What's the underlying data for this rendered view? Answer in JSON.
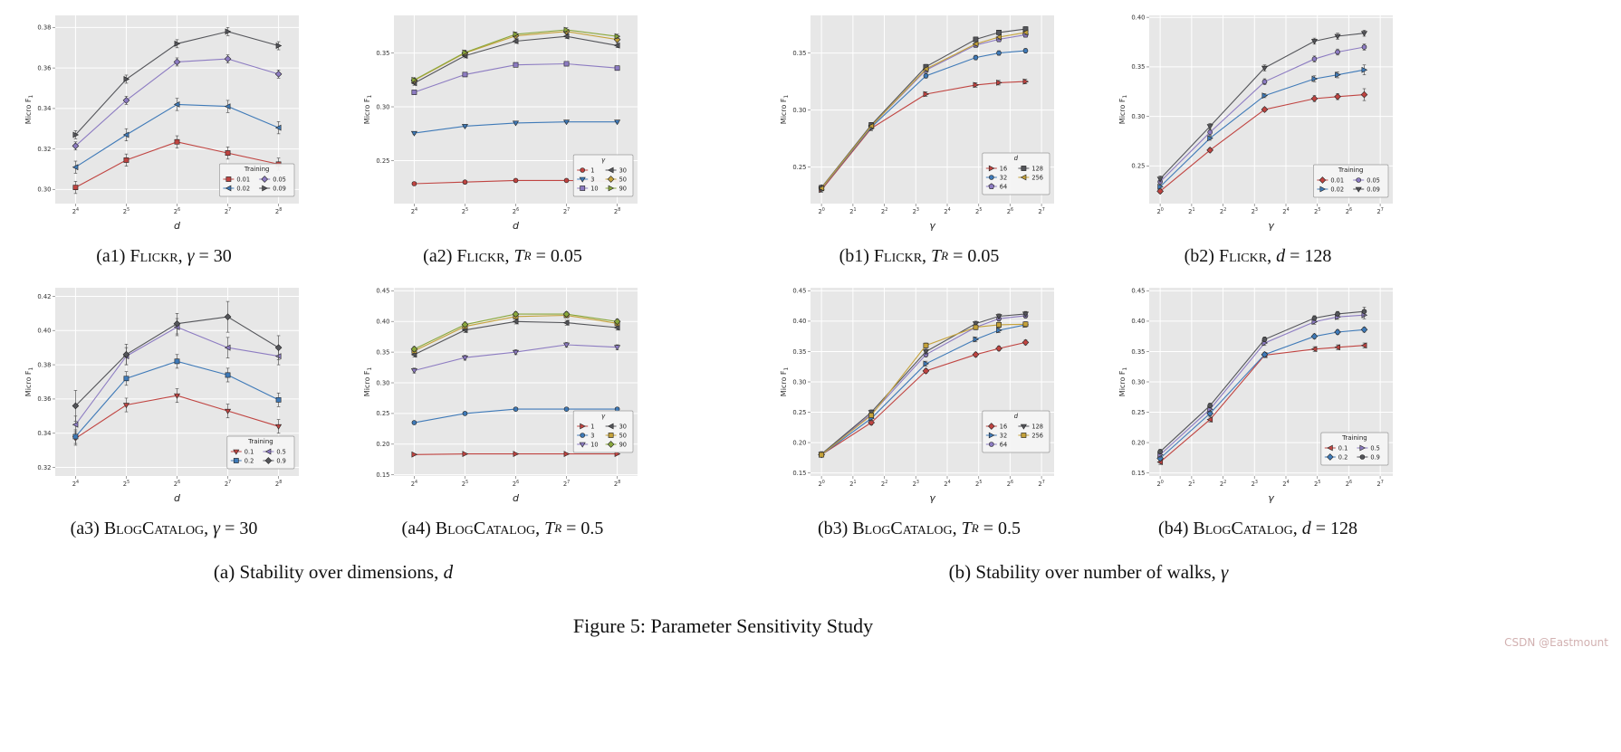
{
  "figure": {
    "caption": "Figure 5: Parameter Sensitivity Study",
    "watermark": "CSDN @Eastmount"
  },
  "group_captions": {
    "a": {
      "pre": "(a) Stability over dimensions, ",
      "var": "d"
    },
    "b": {
      "pre": "(b) Stability over number of walks, ",
      "var": "γ"
    }
  },
  "subcaptions": {
    "a1": {
      "idx": "(a1) ",
      "name": "Flickr",
      "mid": ", ",
      "var": "γ",
      "sub": "",
      "post": " = 30"
    },
    "a2": {
      "idx": "(a2) ",
      "name": "Flickr",
      "mid": ", ",
      "var": "T",
      "sub": "R",
      "post": " = 0.05"
    },
    "a3": {
      "idx": "(a3) ",
      "name": "BlogCatalog",
      "mid": ", ",
      "var": "γ",
      "sub": "",
      "post": " = 30"
    },
    "a4": {
      "idx": "(a4) ",
      "name": "BlogCatalog",
      "mid": ", ",
      "var": "T",
      "sub": "R",
      "post": " = 0.5"
    },
    "b1": {
      "idx": "(b1) ",
      "name": "Flickr",
      "mid": ", ",
      "var": "T",
      "sub": "R",
      "post": " = 0.05"
    },
    "b2": {
      "idx": "(b2) ",
      "name": "Flickr",
      "mid": ", ",
      "var": "d",
      "sub": "",
      "post": " = 128"
    },
    "b3": {
      "idx": "(b3) ",
      "name": "BlogCatalog",
      "mid": ", ",
      "var": "T",
      "sub": "R",
      "post": " = 0.5"
    },
    "b4": {
      "idx": "(b4) ",
      "name": "BlogCatalog",
      "mid": ", ",
      "var": "d",
      "sub": "",
      "post": " = 128"
    }
  },
  "chart_data": [
    {
      "id": "a1",
      "type": "line",
      "title": "(a1) Flickr, γ = 30",
      "xlabel": "d",
      "ylabel": {
        "text": "Micro F",
        "sub": "1"
      },
      "x_scale": "log2",
      "x_tick_base": 2,
      "x_values": [
        16,
        32,
        64,
        128,
        256
      ],
      "x_ticks": [
        4,
        5,
        6,
        7,
        8
      ],
      "xlim": [
        3.6,
        8.4
      ],
      "ylim": [
        0.293,
        0.386
      ],
      "y_ticks": [
        0.3,
        0.32,
        0.34,
        0.36,
        0.38
      ],
      "legend": {
        "title": "Training",
        "italic": false,
        "dy": 8
      },
      "series": [
        {
          "name": "0.01",
          "color": "#c04441",
          "marker": "square",
          "values": [
            0.301,
            0.3145,
            0.3235,
            0.318,
            0.3125
          ],
          "err": 0.003
        },
        {
          "name": "0.02",
          "color": "#3f7ab8",
          "marker": "triangle-left",
          "values": [
            0.311,
            0.327,
            0.342,
            0.341,
            0.3305
          ],
          "err": 0.003
        },
        {
          "name": "0.05",
          "color": "#8d7cc2",
          "marker": "diamond",
          "values": [
            0.3215,
            0.344,
            0.363,
            0.3645,
            0.357
          ],
          "err": 0.002
        },
        {
          "name": "0.09",
          "color": "#54555a",
          "marker": "triangle-right",
          "values": [
            0.327,
            0.3545,
            0.372,
            0.378,
            0.371
          ],
          "err": 0.002
        }
      ]
    },
    {
      "id": "a2",
      "type": "line",
      "title": "(a2) Flickr, T_R = 0.05",
      "xlabel": "d",
      "ylabel": {
        "text": "Micro F",
        "sub": "1"
      },
      "x_scale": "log2",
      "x_tick_base": 2,
      "x_values": [
        16,
        32,
        64,
        128,
        256
      ],
      "x_ticks": [
        4,
        5,
        6,
        7,
        8
      ],
      "xlim": [
        3.6,
        8.4
      ],
      "ylim": [
        0.21,
        0.385
      ],
      "y_ticks": [
        0.25,
        0.3,
        0.35
      ],
      "legend": {
        "title": "γ",
        "italic": true,
        "dy": 8
      },
      "series": [
        {
          "name": "1",
          "color": "#c04441",
          "marker": "circle",
          "values": [
            0.2285,
            0.23,
            0.2315,
            0.2315,
            0.2305
          ],
          "err": 0.001
        },
        {
          "name": "3",
          "color": "#3f7ab8",
          "marker": "triangle-down",
          "values": [
            0.2755,
            0.282,
            0.285,
            0.286,
            0.286
          ],
          "err": 0.001
        },
        {
          "name": "10",
          "color": "#8d7cc2",
          "marker": "square",
          "values": [
            0.3135,
            0.33,
            0.339,
            0.34,
            0.336
          ],
          "err": 0.002
        },
        {
          "name": "30",
          "color": "#54555a",
          "marker": "triangle-left",
          "values": [
            0.322,
            0.3475,
            0.361,
            0.3655,
            0.357
          ],
          "err": 0.002
        },
        {
          "name": "50",
          "color": "#c5a23a",
          "marker": "diamond",
          "values": [
            0.3245,
            0.35,
            0.366,
            0.37,
            0.3625
          ],
          "err": 0.002
        },
        {
          "name": "90",
          "color": "#8aa83c",
          "marker": "triangle-right",
          "values": [
            0.325,
            0.3505,
            0.3675,
            0.3715,
            0.3655
          ],
          "err": 0.002
        }
      ]
    },
    {
      "id": "a3",
      "type": "line",
      "title": "(a3) BlogCatalog, γ = 30",
      "xlabel": "d",
      "ylabel": {
        "text": "Micro F",
        "sub": "1"
      },
      "x_scale": "log2",
      "x_tick_base": 2,
      "x_values": [
        16,
        32,
        64,
        128,
        256
      ],
      "x_ticks": [
        4,
        5,
        6,
        7,
        8
      ],
      "xlim": [
        3.6,
        8.4
      ],
      "ylim": [
        0.315,
        0.425
      ],
      "y_ticks": [
        0.32,
        0.34,
        0.36,
        0.38,
        0.4,
        0.42
      ],
      "legend": {
        "title": "Training",
        "italic": false,
        "dy": 8
      },
      "series": [
        {
          "name": "0.1",
          "color": "#c04441",
          "marker": "triangle-down",
          "values": [
            0.337,
            0.3565,
            0.362,
            0.353,
            0.344
          ],
          "err": 0.004
        },
        {
          "name": "0.2",
          "color": "#3f7ab8",
          "marker": "square",
          "values": [
            0.338,
            0.372,
            0.382,
            0.374,
            0.3595
          ],
          "err": 0.004
        },
        {
          "name": "0.5",
          "color": "#8d7cc2",
          "marker": "triangle-left",
          "values": [
            0.345,
            0.385,
            0.402,
            0.39,
            0.385
          ],
          "err": [
            0.005,
            0.005,
            0.005,
            0.006,
            0.005
          ]
        },
        {
          "name": "0.9",
          "color": "#54555a",
          "marker": "diamond",
          "values": [
            0.356,
            0.386,
            0.404,
            0.408,
            0.39
          ],
          "err": [
            0.009,
            0.006,
            0.006,
            0.009,
            0.007
          ]
        }
      ]
    },
    {
      "id": "a4",
      "type": "line",
      "title": "(a4) BlogCatalog, T_R = 0.5",
      "xlabel": "d",
      "ylabel": {
        "text": "Micro F",
        "sub": "1"
      },
      "x_scale": "log2",
      "x_tick_base": 2,
      "x_values": [
        16,
        32,
        64,
        128,
        256
      ],
      "x_ticks": [
        4,
        5,
        6,
        7,
        8
      ],
      "xlim": [
        3.6,
        8.4
      ],
      "ylim": [
        0.148,
        0.455
      ],
      "y_ticks": [
        0.15,
        0.2,
        0.25,
        0.3,
        0.35,
        0.4,
        0.45
      ],
      "legend": {
        "title": "γ",
        "italic": true,
        "dy": 26
      },
      "series": [
        {
          "name": "1",
          "color": "#c04441",
          "marker": "triangle-right",
          "values": [
            0.183,
            0.184,
            0.184,
            0.184,
            0.184
          ],
          "err": 0.001
        },
        {
          "name": "3",
          "color": "#3f7ab8",
          "marker": "circle",
          "values": [
            0.235,
            0.25,
            0.257,
            0.257,
            0.257
          ],
          "err": 0.002
        },
        {
          "name": "10",
          "color": "#8d7cc2",
          "marker": "triangle-down",
          "values": [
            0.32,
            0.341,
            0.35,
            0.362,
            0.358
          ],
          "err": 0.004
        },
        {
          "name": "30",
          "color": "#54555a",
          "marker": "triangle-left",
          "values": [
            0.346,
            0.386,
            0.4,
            0.398,
            0.39
          ],
          "err": 0.004
        },
        {
          "name": "50",
          "color": "#c5a23a",
          "marker": "square",
          "values": [
            0.352,
            0.392,
            0.408,
            0.41,
            0.397
          ],
          "err": 0.004
        },
        {
          "name": "90",
          "color": "#8aa83c",
          "marker": "diamond",
          "values": [
            0.355,
            0.395,
            0.412,
            0.412,
            0.4
          ],
          "err": 0.004
        }
      ]
    },
    {
      "id": "b1",
      "type": "line",
      "title": "(b1) Flickr, T_R = 0.05",
      "xlabel": "γ",
      "ylabel": {
        "text": "Micro F",
        "sub": "1"
      },
      "x_scale": "log2",
      "x_tick_base": 2,
      "x_values": [
        1,
        3,
        10,
        30,
        50,
        90
      ],
      "x_ticks": [
        0,
        1,
        2,
        3,
        4,
        5,
        6,
        7
      ],
      "xlim": [
        -0.35,
        7.4
      ],
      "ylim": [
        0.218,
        0.383
      ],
      "y_ticks": [
        0.25,
        0.3,
        0.35
      ],
      "legend": {
        "title": "d",
        "italic": true,
        "dy": 10
      },
      "series": [
        {
          "name": "16",
          "color": "#c04441",
          "marker": "triangle-right",
          "values": [
            0.23,
            0.284,
            0.314,
            0.322,
            0.324,
            0.325
          ],
          "err": 0.002
        },
        {
          "name": "32",
          "color": "#3f7ab8",
          "marker": "circle",
          "values": [
            0.231,
            0.285,
            0.33,
            0.346,
            0.35,
            0.352
          ],
          "err": 0.002
        },
        {
          "name": "64",
          "color": "#8d7cc2",
          "marker": "pentagon",
          "values": [
            0.232,
            0.286,
            0.335,
            0.357,
            0.362,
            0.366
          ],
          "err": 0.002
        },
        {
          "name": "128",
          "color": "#54555a",
          "marker": "square",
          "values": [
            0.232,
            0.287,
            0.338,
            0.362,
            0.368,
            0.371
          ],
          "err": 0.002
        },
        {
          "name": "256",
          "color": "#c5a23a",
          "marker": "triangle-left",
          "values": [
            0.2315,
            0.286,
            0.336,
            0.358,
            0.364,
            0.368
          ],
          "err": 0.002
        }
      ]
    },
    {
      "id": "b2",
      "type": "line",
      "title": "(b2) Flickr, d = 128",
      "xlabel": "γ",
      "ylabel": {
        "text": "Micro F",
        "sub": "1"
      },
      "x_scale": "log2",
      "x_tick_base": 2,
      "x_values": [
        1,
        3,
        10,
        30,
        50,
        90
      ],
      "x_ticks": [
        0,
        1,
        2,
        3,
        4,
        5,
        6,
        7
      ],
      "xlim": [
        -0.35,
        7.4
      ],
      "ylim": [
        0.212,
        0.402
      ],
      "y_ticks": [
        0.25,
        0.3,
        0.35,
        0.4
      ],
      "legend": {
        "title": "Training",
        "italic": false,
        "dy": 7
      },
      "series": [
        {
          "name": "0.01",
          "color": "#c04441",
          "marker": "diamond",
          "values": [
            0.2245,
            0.266,
            0.307,
            0.318,
            0.32,
            0.322
          ],
          "err": [
            0.002,
            0.002,
            0.002,
            0.003,
            0.003,
            0.006
          ]
        },
        {
          "name": "0.02",
          "color": "#3f7ab8",
          "marker": "triangle-right",
          "values": [
            0.229,
            0.278,
            0.321,
            0.338,
            0.342,
            0.347
          ],
          "err": [
            0.002,
            0.002,
            0.002,
            0.003,
            0.003,
            0.005
          ]
        },
        {
          "name": "0.05",
          "color": "#8d7cc2",
          "marker": "circle",
          "values": [
            0.234,
            0.284,
            0.335,
            0.358,
            0.365,
            0.37
          ],
          "err": 0.003
        },
        {
          "name": "0.09",
          "color": "#54555a",
          "marker": "triangle-down",
          "values": [
            0.237,
            0.29,
            0.349,
            0.376,
            0.381,
            0.384
          ],
          "err": 0.003
        }
      ]
    },
    {
      "id": "b3",
      "type": "line",
      "title": "(b3) BlogCatalog, T_R = 0.5",
      "xlabel": "γ",
      "ylabel": {
        "text": "Micro F",
        "sub": "1"
      },
      "x_scale": "log2",
      "x_tick_base": 2,
      "x_values": [
        1,
        3,
        10,
        30,
        50,
        90
      ],
      "x_ticks": [
        0,
        1,
        2,
        3,
        4,
        5,
        6,
        7
      ],
      "xlim": [
        -0.35,
        7.4
      ],
      "ylim": [
        0.145,
        0.455
      ],
      "y_ticks": [
        0.15,
        0.2,
        0.25,
        0.3,
        0.35,
        0.4,
        0.45
      ],
      "legend": {
        "title": "d",
        "italic": true,
        "dy": 26
      },
      "series": [
        {
          "name": "16",
          "color": "#c04441",
          "marker": "diamond",
          "values": [
            0.18,
            0.233,
            0.318,
            0.345,
            0.355,
            0.365
          ],
          "err": 0.004
        },
        {
          "name": "32",
          "color": "#3f7ab8",
          "marker": "triangle-right",
          "values": [
            0.18,
            0.24,
            0.33,
            0.37,
            0.385,
            0.394
          ],
          "err": 0.004
        },
        {
          "name": "64",
          "color": "#8d7cc2",
          "marker": "circle",
          "values": [
            0.181,
            0.247,
            0.345,
            0.39,
            0.404,
            0.409
          ],
          "err": 0.004
        },
        {
          "name": "128",
          "color": "#54555a",
          "marker": "triangle-down",
          "values": [
            0.181,
            0.25,
            0.35,
            0.396,
            0.408,
            0.412
          ],
          "err": 0.004
        },
        {
          "name": "256",
          "color": "#c5a23a",
          "marker": "square",
          "values": [
            0.18,
            0.245,
            0.36,
            0.39,
            0.394,
            0.395
          ],
          "err": 0.004
        }
      ]
    },
    {
      "id": "b4",
      "type": "line",
      "title": "(b4) BlogCatalog, d = 128",
      "xlabel": "γ",
      "ylabel": {
        "text": "Micro F",
        "sub": "1"
      },
      "x_scale": "log2",
      "x_tick_base": 2,
      "x_values": [
        1,
        3,
        10,
        30,
        50,
        90
      ],
      "x_ticks": [
        0,
        1,
        2,
        3,
        4,
        5,
        6,
        7
      ],
      "xlim": [
        -0.35,
        7.4
      ],
      "ylim": [
        0.145,
        0.455
      ],
      "y_ticks": [
        0.15,
        0.2,
        0.25,
        0.3,
        0.35,
        0.4,
        0.45
      ],
      "legend": {
        "title": "Training",
        "italic": false,
        "dy": 12
      },
      "series": [
        {
          "name": "0.1",
          "color": "#c04441",
          "marker": "triangle-left",
          "values": [
            0.168,
            0.238,
            0.344,
            0.354,
            0.357,
            0.36
          ],
          "err": 0.004
        },
        {
          "name": "0.2",
          "color": "#3f7ab8",
          "marker": "diamond",
          "values": [
            0.174,
            0.248,
            0.345,
            0.375,
            0.382,
            0.386
          ],
          "err": 0.004
        },
        {
          "name": "0.5",
          "color": "#8d7cc2",
          "marker": "triangle-right",
          "values": [
            0.18,
            0.255,
            0.364,
            0.399,
            0.407,
            0.41
          ],
          "err": [
            0.004,
            0.004,
            0.004,
            0.004,
            0.004,
            0.006
          ]
        },
        {
          "name": "0.9",
          "color": "#54555a",
          "marker": "circle",
          "values": [
            0.185,
            0.261,
            0.37,
            0.405,
            0.412,
            0.416
          ],
          "err": [
            0.004,
            0.004,
            0.004,
            0.004,
            0.004,
            0.007
          ]
        }
      ]
    }
  ]
}
